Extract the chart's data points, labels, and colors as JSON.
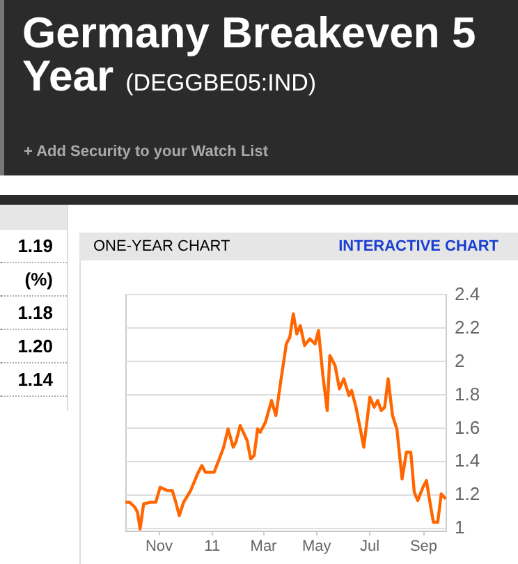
{
  "chart_data": {
    "type": "line",
    "title": "Germany Breakeven 5 Year",
    "subtitle": "(DEGGBE05:IND)",
    "annotations": [
      "+ Add Security to your Watch List",
      "ONE-YEAR CHART",
      "INTERACTIVE CHART",
      "1.19",
      "(%)",
      "1.18",
      "1.20",
      "1.14"
    ],
    "x": [
      "2010-09-24",
      "2010-09-29",
      "2010-10-05",
      "2010-10-08",
      "2010-10-11",
      "2010-10-15",
      "2010-10-23",
      "2010-10-29",
      "2010-11-03",
      "2010-11-11",
      "2010-11-17",
      "2010-11-21",
      "2010-11-25",
      "2010-11-30",
      "2010-12-08",
      "2010-12-16",
      "2010-12-21",
      "2010-12-25",
      "2011-01-04",
      "2011-01-10",
      "2011-01-15",
      "2011-01-20",
      "2011-01-26",
      "2011-01-29",
      "2011-02-03",
      "2011-02-11",
      "2011-02-15",
      "2011-02-19",
      "2011-02-23",
      "2011-02-26",
      "2011-03-04",
      "2011-03-11",
      "2011-03-16",
      "2011-03-22",
      "2011-03-28",
      "2011-04-01",
      "2011-04-05",
      "2011-04-09",
      "2011-04-13",
      "2011-04-18",
      "2011-04-24",
      "2011-04-30",
      "2011-05-04",
      "2011-05-09",
      "2011-05-14",
      "2011-05-17",
      "2011-05-23",
      "2011-05-28",
      "2011-06-02",
      "2011-06-08",
      "2011-06-11",
      "2011-06-16",
      "2011-06-21",
      "2011-06-25",
      "2011-07-02",
      "2011-07-07",
      "2011-07-11",
      "2011-07-15",
      "2011-07-19",
      "2011-07-23",
      "2011-07-28",
      "2011-08-02",
      "2011-08-08",
      "2011-08-13",
      "2011-08-18",
      "2011-08-22",
      "2011-08-26",
      "2011-09-01",
      "2011-09-05",
      "2011-09-09",
      "2011-09-13",
      "2011-09-18",
      "2011-09-22",
      "2011-09-27"
    ],
    "series": [
      {
        "color": "#ff6600",
        "values": [
          1.15,
          1.15,
          1.12,
          1.09,
          0.99,
          1.14,
          1.15,
          1.15,
          1.24,
          1.22,
          1.22,
          1.15,
          1.07,
          1.15,
          1.22,
          1.32,
          1.37,
          1.33,
          1.33,
          1.41,
          1.48,
          1.59,
          1.48,
          1.51,
          1.61,
          1.52,
          1.41,
          1.43,
          1.59,
          1.57,
          1.63,
          1.76,
          1.67,
          1.89,
          2.1,
          2.14,
          2.28,
          2.16,
          2.21,
          2.09,
          2.13,
          2.1,
          2.18,
          1.91,
          1.7,
          2.03,
          1.97,
          1.83,
          1.89,
          1.79,
          1.82,
          1.72,
          1.59,
          1.48,
          1.78,
          1.72,
          1.76,
          1.7,
          1.72,
          1.89,
          1.67,
          1.59,
          1.29,
          1.45,
          1.45,
          1.21,
          1.16,
          1.24,
          1.28,
          1.15,
          1.03,
          1.03,
          1.2,
          1.17
        ]
      }
    ],
    "xlim": [
      "2010-09-24",
      "2011-09-27"
    ],
    "xticks": [
      {
        "value": "2010-11-01",
        "label": "Nov"
      },
      {
        "value": "2011-01-01",
        "label": "11"
      },
      {
        "value": "2011-03-01",
        "label": "Mar"
      },
      {
        "value": "2011-05-01",
        "label": "May"
      },
      {
        "value": "2011-07-01",
        "label": "Jul"
      },
      {
        "value": "2011-09-01",
        "label": "Sep"
      }
    ],
    "ylim": [
      0.98,
      2.4
    ],
    "yticks": [
      1,
      1.2,
      1.4,
      1.6,
      1.8,
      2,
      2.2,
      2.4
    ],
    "grid": "y",
    "legend": false
  }
}
